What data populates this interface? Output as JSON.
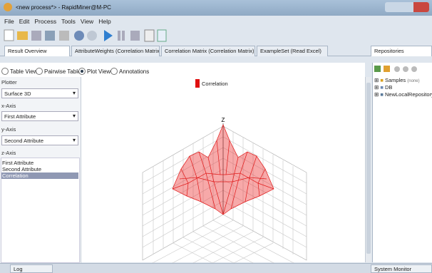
{
  "window": {
    "title": "<new process*> - RapidMiner@M-PC"
  },
  "menu": [
    "File",
    "Edit",
    "Process",
    "Tools",
    "View",
    "Help"
  ],
  "tabs": [
    "Result Overview",
    "AttributeWeights (Correlation Matrix)",
    "Correlation Matrix (Correlation Matrix)",
    "ExampleSet (Read Excel)"
  ],
  "view_options": [
    "Table View",
    "Pairwise Table",
    "Plot View",
    "Annotations"
  ],
  "plotter": {
    "label": "Plotter",
    "value": "Surface 3D",
    "x_axis_label": "x-Axis",
    "x_axis_value": "First Attribute",
    "y_axis_label": "y-Axis",
    "y_axis_value": "Second Attribute",
    "z_axis_label": "z-Axis",
    "z_axis_options": [
      "First Attribute",
      "Second Attribute",
      "Correlation"
    ]
  },
  "plot": {
    "legend": "Correlation",
    "z_label": "Z"
  },
  "repositories": {
    "title": "Repositories",
    "items": [
      {
        "label": "Samples",
        "note": "(none)"
      },
      {
        "label": "DB"
      },
      {
        "label": "NewLocalRepository"
      }
    ]
  },
  "bottom": {
    "log": "Log",
    "system_monitor": "System Monitor"
  }
}
